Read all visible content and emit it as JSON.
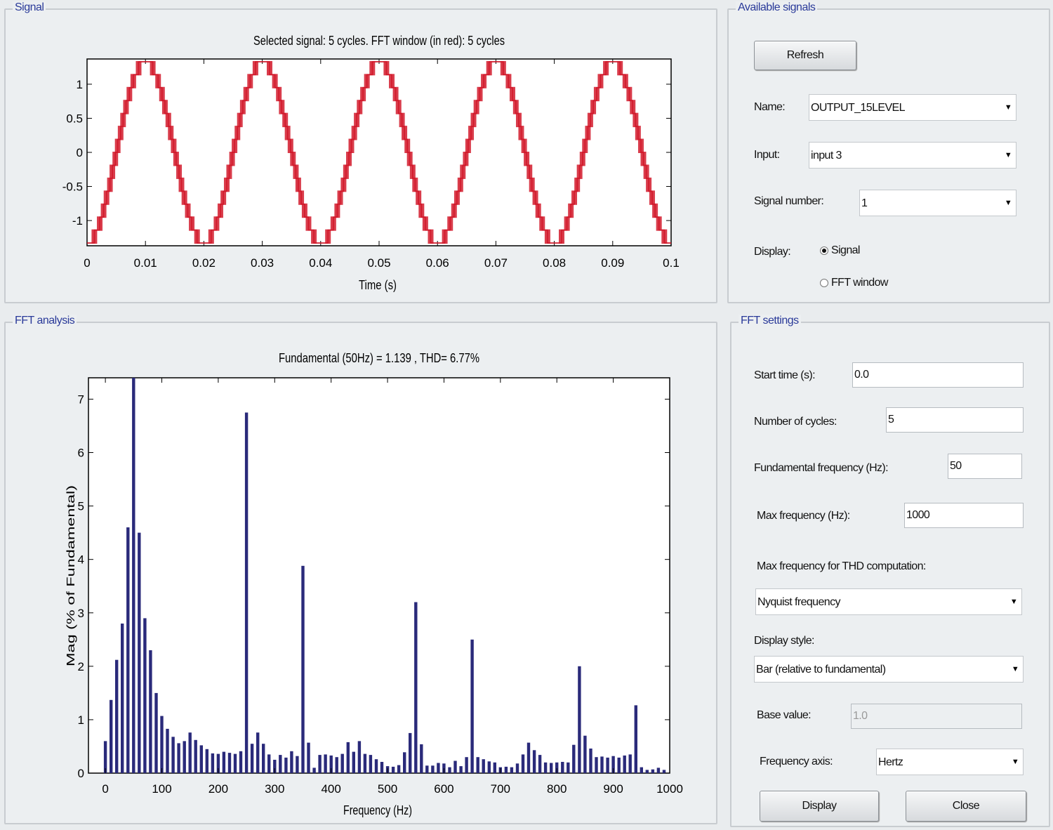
{
  "signal_panel": {
    "title": "Signal",
    "plot_title": "Selected signal: 5 cycles. FFT window (in red): 5 cycles",
    "xlabel": "Time (s)"
  },
  "fft_panel": {
    "title": "FFT analysis",
    "plot_title": "Fundamental (50Hz) = 1.139 , THD=  6.77%",
    "xlabel": "Frequency (Hz)",
    "ylabel": "Mag (% of Fundamental)"
  },
  "available_signals": {
    "title": "Available signals",
    "refresh_label": "Refresh",
    "name_label": "Name:",
    "name_value": "OUTPUT_15LEVEL",
    "input_label": "Input:",
    "input_value": "input 3",
    "signal_number_label": "Signal number:",
    "signal_number_value": "1",
    "display_label": "Display:",
    "display_options": [
      "Signal",
      "FFT window"
    ],
    "display_selected": "Signal"
  },
  "fft_settings": {
    "title": "FFT settings",
    "start_time_label": "Start time (s):",
    "start_time_value": "0.0",
    "cycles_label": "Number of cycles:",
    "cycles_value": "5",
    "fund_freq_label": "Fundamental frequency (Hz):",
    "fund_freq_value": "50",
    "max_freq_label": "Max frequency (Hz):",
    "max_freq_value": "1000",
    "thd_max_label": "Max frequency for THD computation:",
    "thd_max_value": "Nyquist frequency",
    "display_style_label": "Display style:",
    "display_style_value": "Bar (relative to fundamental)",
    "base_value_label": "Base value:",
    "base_value_value": "1.0",
    "freq_axis_label": "Frequency axis:",
    "freq_axis_value": "Hertz",
    "display_button": "Display",
    "close_button": "Close"
  },
  "chart_data": [
    {
      "type": "line",
      "title": "Selected signal: 5 cycles. FFT window (in red): 5 cycles",
      "xlabel": "Time (s)",
      "ylabel": "",
      "xlim": [
        0,
        0.1
      ],
      "ylim": [
        -1.37,
        1.37
      ],
      "xticks": [
        "0",
        "0.01",
        "0.02",
        "0.03",
        "0.04",
        "0.05",
        "0.06",
        "0.07",
        "0.08",
        "0.09",
        "0.1"
      ],
      "yticks": [
        "1",
        "0.5",
        "0",
        "-0.5",
        "-1"
      ],
      "grid": false,
      "series": [
        {
          "color": "#cc1122",
          "waveform": "15-level staircase sine",
          "frequency_hz": 50,
          "amplitude": 1.33,
          "phase_start": -1.0,
          "levels": 7
        }
      ]
    },
    {
      "type": "bar",
      "title": "Fundamental (50Hz) = 1.139 , THD=  6.77%",
      "xlabel": "Frequency (Hz)",
      "ylabel": "Mag (% of Fundamental)",
      "xlim": [
        -30,
        1000
      ],
      "ylim": [
        0,
        7.4
      ],
      "xticks": [
        "0",
        "100",
        "200",
        "300",
        "400",
        "500",
        "600",
        "700",
        "800",
        "900",
        "1000"
      ],
      "yticks": [
        "0",
        "1",
        "2",
        "3",
        "4",
        "5",
        "6",
        "7"
      ],
      "grid": false,
      "bar_color": "#2a2a7a",
      "x": [
        0,
        10,
        20,
        30,
        40,
        50,
        60,
        70,
        80,
        90,
        100,
        110,
        120,
        130,
        140,
        150,
        160,
        170,
        180,
        190,
        200,
        210,
        220,
        230,
        240,
        250,
        260,
        270,
        280,
        290,
        300,
        310,
        320,
        330,
        340,
        350,
        360,
        370,
        380,
        390,
        400,
        410,
        420,
        430,
        440,
        450,
        460,
        470,
        480,
        490,
        500,
        510,
        520,
        530,
        540,
        550,
        560,
        570,
        580,
        590,
        600,
        610,
        620,
        630,
        640,
        650,
        660,
        670,
        680,
        690,
        700,
        710,
        720,
        730,
        740,
        750,
        760,
        770,
        780,
        790,
        800,
        810,
        820,
        830,
        840,
        850,
        860,
        870,
        880,
        890,
        900,
        910,
        920,
        930,
        940,
        950,
        960,
        970,
        980,
        990,
        1000
      ],
      "values": [
        0.6,
        1.37,
        2.12,
        2.8,
        4.6,
        7.4,
        4.5,
        2.9,
        2.3,
        1.5,
        1.07,
        0.83,
        0.68,
        0.56,
        0.6,
        0.76,
        0.62,
        0.52,
        0.45,
        0.37,
        0.36,
        0.4,
        0.38,
        0.36,
        0.41,
        6.75,
        0.55,
        0.76,
        0.55,
        0.35,
        0.25,
        0.34,
        0.29,
        0.41,
        0.32,
        3.88,
        0.57,
        0.1,
        0.34,
        0.35,
        0.33,
        0.3,
        0.36,
        0.58,
        0.4,
        0.6,
        0.36,
        0.34,
        0.26,
        0.21,
        0.13,
        0.12,
        0.15,
        0.39,
        0.75,
        3.2,
        0.54,
        0.14,
        0.14,
        0.19,
        0.18,
        0.11,
        0.23,
        0.13,
        0.3,
        2.5,
        0.3,
        0.26,
        0.22,
        0.2,
        0.11,
        0.12,
        0.11,
        0.18,
        0.35,
        0.57,
        0.43,
        0.34,
        0.2,
        0.19,
        0.2,
        0.21,
        0.2,
        0.53,
        2.0,
        0.7,
        0.46,
        0.3,
        0.31,
        0.29,
        0.32,
        0.29,
        0.33,
        0.35,
        1.27,
        0.11,
        0.06,
        0.07,
        0.1,
        0.06,
        0.0
      ]
    }
  ]
}
